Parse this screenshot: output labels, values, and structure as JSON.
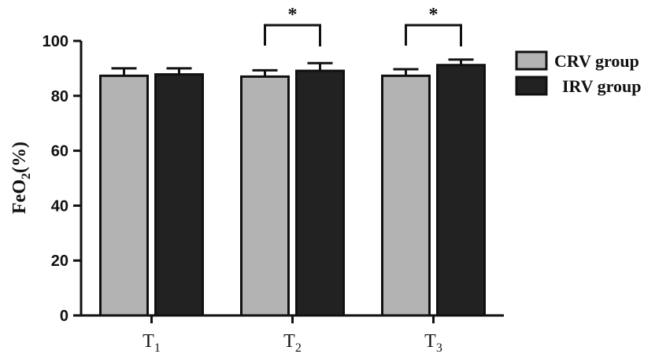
{
  "chart_data": {
    "type": "bar",
    "ylabel_main": "FeO",
    "ylabel_sub": "2",
    "ylabel_tail": "(%)",
    "ylim": [
      0,
      100
    ],
    "yticks": [
      0,
      20,
      40,
      60,
      80,
      100
    ],
    "categories": [
      {
        "main": "T",
        "sub": "1"
      },
      {
        "main": "T",
        "sub": "2"
      },
      {
        "main": "T",
        "sub": "3"
      }
    ],
    "series": [
      {
        "name": "CRV group",
        "color": "#b3b3b3",
        "values": [
          87.3,
          87.0,
          87.3
        ],
        "errors": [
          2.7,
          2.3,
          2.4
        ]
      },
      {
        "name": "IRV group",
        "color": "#222222",
        "values": [
          87.8,
          89.1,
          91.2
        ],
        "errors": [
          2.2,
          2.8,
          2.0
        ]
      }
    ],
    "significance": [
      {
        "category_index": 1,
        "label": "*"
      },
      {
        "category_index": 2,
        "label": "*"
      }
    ],
    "legend_position": "right",
    "grid": false
  }
}
